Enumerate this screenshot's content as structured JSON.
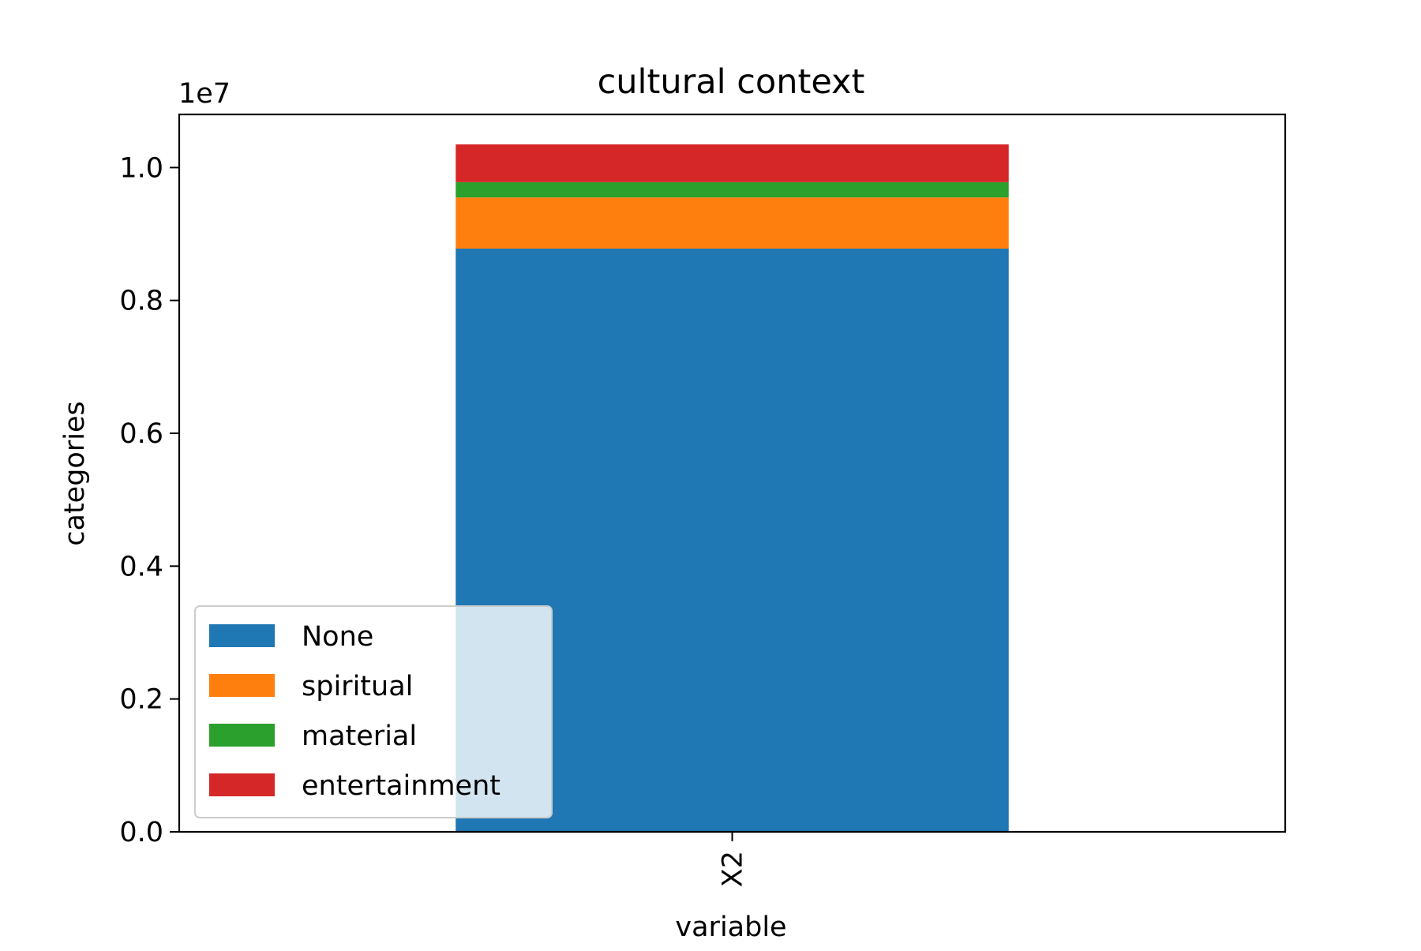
{
  "chart_data": {
    "type": "bar",
    "stacked": true,
    "title": "cultural context",
    "xlabel": "variable",
    "ylabel": "categories",
    "y_scale_label": "1e7",
    "categories": [
      "X2"
    ],
    "ylim": [
      0,
      10800000
    ],
    "yticks": [
      0,
      2000000,
      4000000,
      6000000,
      8000000,
      10000000
    ],
    "ytick_labels": [
      "0.0",
      "0.2",
      "0.4",
      "0.6",
      "0.8",
      "1.0"
    ],
    "grid": false,
    "legend_position": "lower-left",
    "series": [
      {
        "name": "None",
        "color": "#1f77b4",
        "values": [
          8780000
        ]
      },
      {
        "name": "spiritual",
        "color": "#ff7f0e",
        "values": [
          770000
        ]
      },
      {
        "name": "material",
        "color": "#2ca02c",
        "values": [
          230000
        ]
      },
      {
        "name": "entertainment",
        "color": "#d62728",
        "values": [
          570000
        ]
      }
    ]
  }
}
